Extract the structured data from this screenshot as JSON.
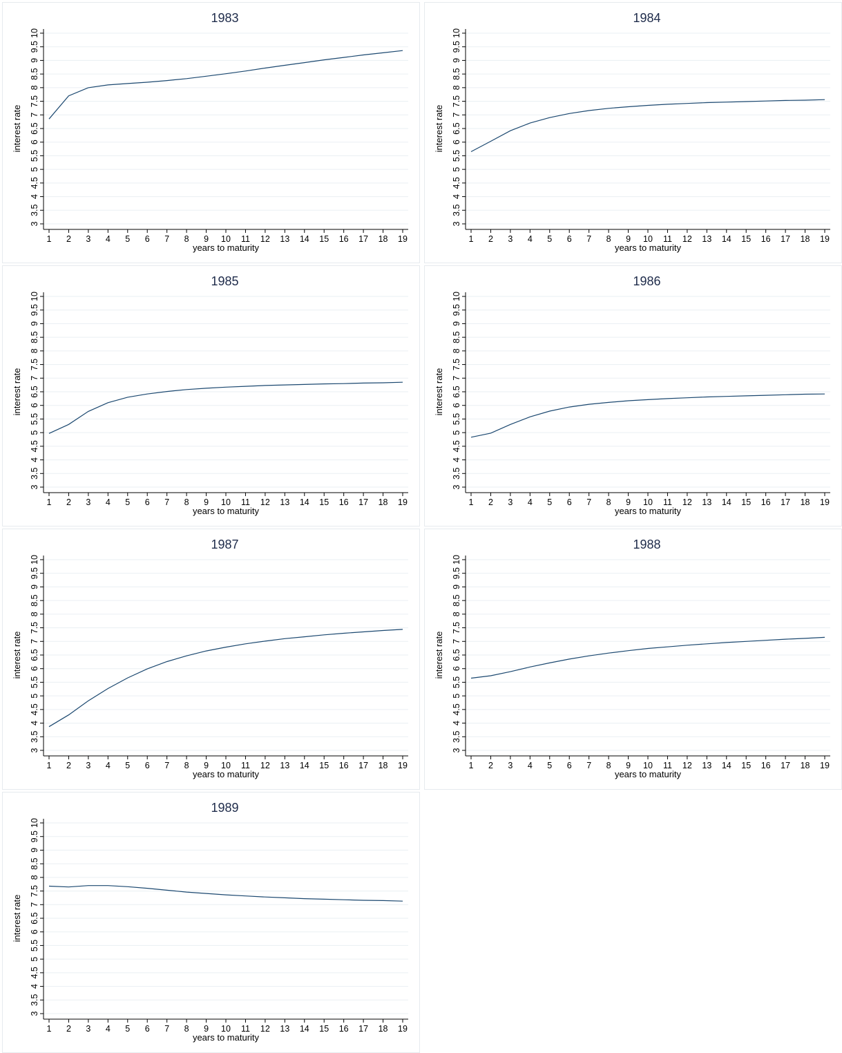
{
  "colors": {
    "line": "#1a476f",
    "grid": "#eaeff3",
    "title": "#1e2b4a"
  },
  "chart_data": [
    {
      "type": "line",
      "title": "1983",
      "xlabel": "years to maturity",
      "ylabel": "interest rate",
      "xlim": [
        1,
        19
      ],
      "ylim": [
        3,
        10
      ],
      "x_ticks": [
        1,
        2,
        3,
        4,
        5,
        6,
        7,
        8,
        9,
        10,
        11,
        12,
        13,
        14,
        15,
        16,
        17,
        18,
        19
      ],
      "y_ticks": [
        3,
        3.5,
        4,
        4.5,
        5,
        5.5,
        6,
        6.5,
        7,
        7.5,
        8,
        8.5,
        9,
        9.5,
        10
      ],
      "grid": true,
      "x": [
        1,
        2,
        3,
        4,
        5,
        6,
        7,
        8,
        9,
        10,
        11,
        12,
        13,
        14,
        15,
        16,
        17,
        18,
        19
      ],
      "y": [
        6.85,
        7.7,
        8.0,
        8.1,
        8.15,
        8.2,
        8.26,
        8.33,
        8.42,
        8.51,
        8.61,
        8.72,
        8.82,
        8.92,
        9.02,
        9.11,
        9.2,
        9.28,
        9.36
      ]
    },
    {
      "type": "line",
      "title": "1984",
      "xlabel": "years to maturity",
      "ylabel": "interest rate",
      "xlim": [
        1,
        19
      ],
      "ylim": [
        3,
        10
      ],
      "x_ticks": [
        1,
        2,
        3,
        4,
        5,
        6,
        7,
        8,
        9,
        10,
        11,
        12,
        13,
        14,
        15,
        16,
        17,
        18,
        19
      ],
      "y_ticks": [
        3,
        3.5,
        4,
        4.5,
        5,
        5.5,
        6,
        6.5,
        7,
        7.5,
        8,
        8.5,
        9,
        9.5,
        10
      ],
      "grid": true,
      "x": [
        1,
        2,
        3,
        4,
        5,
        6,
        7,
        8,
        9,
        10,
        11,
        12,
        13,
        14,
        15,
        16,
        17,
        18,
        19
      ],
      "y": [
        5.65,
        6.03,
        6.42,
        6.7,
        6.9,
        7.05,
        7.16,
        7.24,
        7.3,
        7.35,
        7.39,
        7.42,
        7.45,
        7.47,
        7.49,
        7.51,
        7.53,
        7.54,
        7.56
      ]
    },
    {
      "type": "line",
      "title": "1985",
      "xlabel": "years to maturity",
      "ylabel": "interest rate",
      "xlim": [
        1,
        19
      ],
      "ylim": [
        3,
        10
      ],
      "x_ticks": [
        1,
        2,
        3,
        4,
        5,
        6,
        7,
        8,
        9,
        10,
        11,
        12,
        13,
        14,
        15,
        16,
        17,
        18,
        19
      ],
      "y_ticks": [
        3,
        3.5,
        4,
        4.5,
        5,
        5.5,
        6,
        6.5,
        7,
        7.5,
        8,
        8.5,
        9,
        9.5,
        10
      ],
      "grid": true,
      "x": [
        1,
        2,
        3,
        4,
        5,
        6,
        7,
        8,
        9,
        10,
        11,
        12,
        13,
        14,
        15,
        16,
        17,
        18,
        19
      ],
      "y": [
        4.97,
        5.3,
        5.78,
        6.1,
        6.3,
        6.42,
        6.51,
        6.58,
        6.63,
        6.67,
        6.7,
        6.73,
        6.75,
        6.77,
        6.79,
        6.8,
        6.82,
        6.83,
        6.85
      ]
    },
    {
      "type": "line",
      "title": "1986",
      "xlabel": "years to maturity",
      "ylabel": "interest rate",
      "xlim": [
        1,
        19
      ],
      "ylim": [
        3,
        10
      ],
      "x_ticks": [
        1,
        2,
        3,
        4,
        5,
        6,
        7,
        8,
        9,
        10,
        11,
        12,
        13,
        14,
        15,
        16,
        17,
        18,
        19
      ],
      "y_ticks": [
        3,
        3.5,
        4,
        4.5,
        5,
        5.5,
        6,
        6.5,
        7,
        7.5,
        8,
        8.5,
        9,
        9.5,
        10
      ],
      "grid": true,
      "x": [
        1,
        2,
        3,
        4,
        5,
        6,
        7,
        8,
        9,
        10,
        11,
        12,
        13,
        14,
        15,
        16,
        17,
        18,
        19
      ],
      "y": [
        4.83,
        4.98,
        5.3,
        5.58,
        5.79,
        5.94,
        6.04,
        6.11,
        6.17,
        6.21,
        6.25,
        6.28,
        6.31,
        6.33,
        6.35,
        6.37,
        6.39,
        6.41,
        6.42
      ]
    },
    {
      "type": "line",
      "title": "1987",
      "xlabel": "years to maturity",
      "ylabel": "interest rate",
      "xlim": [
        1,
        19
      ],
      "ylim": [
        3,
        10
      ],
      "x_ticks": [
        1,
        2,
        3,
        4,
        5,
        6,
        7,
        8,
        9,
        10,
        11,
        12,
        13,
        14,
        15,
        16,
        17,
        18,
        19
      ],
      "y_ticks": [
        3,
        3.5,
        4,
        4.5,
        5,
        5.5,
        6,
        6.5,
        7,
        7.5,
        8,
        8.5,
        9,
        9.5,
        10
      ],
      "grid": true,
      "x": [
        1,
        2,
        3,
        4,
        5,
        6,
        7,
        8,
        9,
        10,
        11,
        12,
        13,
        14,
        15,
        16,
        17,
        18,
        19
      ],
      "y": [
        3.87,
        4.3,
        4.82,
        5.27,
        5.66,
        5.99,
        6.26,
        6.47,
        6.65,
        6.79,
        6.91,
        7.01,
        7.1,
        7.17,
        7.24,
        7.3,
        7.35,
        7.4,
        7.44
      ]
    },
    {
      "type": "line",
      "title": "1988",
      "xlabel": "years to maturity",
      "ylabel": "interest rate",
      "xlim": [
        1,
        19
      ],
      "ylim": [
        3,
        10
      ],
      "x_ticks": [
        1,
        2,
        3,
        4,
        5,
        6,
        7,
        8,
        9,
        10,
        11,
        12,
        13,
        14,
        15,
        16,
        17,
        18,
        19
      ],
      "y_ticks": [
        3,
        3.5,
        4,
        4.5,
        5,
        5.5,
        6,
        6.5,
        7,
        7.5,
        8,
        8.5,
        9,
        9.5,
        10
      ],
      "grid": true,
      "x": [
        1,
        2,
        3,
        4,
        5,
        6,
        7,
        8,
        9,
        10,
        11,
        12,
        13,
        14,
        15,
        16,
        17,
        18,
        19
      ],
      "y": [
        5.65,
        5.74,
        5.89,
        6.06,
        6.21,
        6.35,
        6.47,
        6.57,
        6.66,
        6.74,
        6.8,
        6.86,
        6.91,
        6.96,
        7.0,
        7.04,
        7.08,
        7.11,
        7.15
      ]
    },
    {
      "type": "line",
      "title": "1989",
      "xlabel": "years to maturity",
      "ylabel": "interest rate",
      "xlim": [
        1,
        19
      ],
      "ylim": [
        3,
        10
      ],
      "x_ticks": [
        1,
        2,
        3,
        4,
        5,
        6,
        7,
        8,
        9,
        10,
        11,
        12,
        13,
        14,
        15,
        16,
        17,
        18,
        19
      ],
      "y_ticks": [
        3,
        3.5,
        4,
        4.5,
        5,
        5.5,
        6,
        6.5,
        7,
        7.5,
        8,
        8.5,
        9,
        9.5,
        10
      ],
      "grid": true,
      "x": [
        1,
        2,
        3,
        4,
        5,
        6,
        7,
        8,
        9,
        10,
        11,
        12,
        13,
        14,
        15,
        16,
        17,
        18,
        19
      ],
      "y": [
        7.68,
        7.65,
        7.7,
        7.7,
        7.66,
        7.6,
        7.53,
        7.46,
        7.41,
        7.36,
        7.32,
        7.28,
        7.25,
        7.22,
        7.2,
        7.18,
        7.16,
        7.15,
        7.13
      ]
    }
  ]
}
